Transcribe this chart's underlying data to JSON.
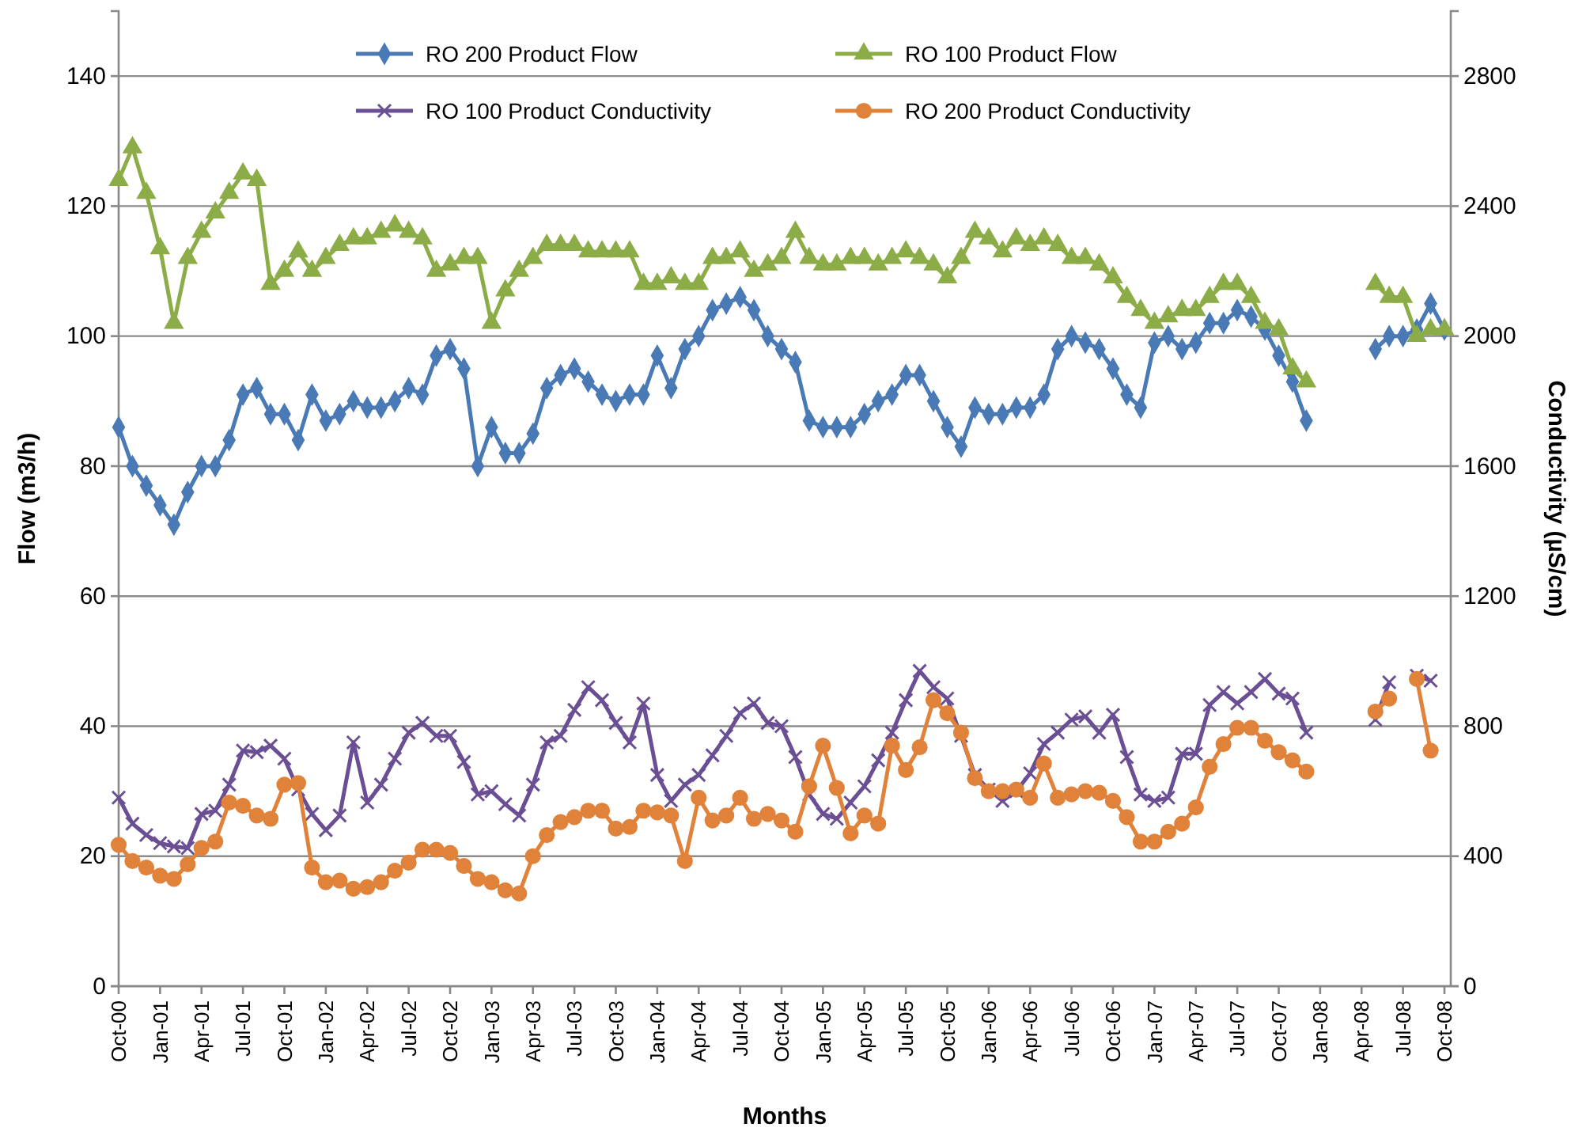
{
  "chart_data": {
    "type": "line",
    "xlabel": "Months",
    "ylabel": "Flow (m3/h)",
    "y2label": "Conductivity (µS/cm)",
    "categories": [
      "Oct-00",
      null,
      null,
      "Jan-01",
      null,
      null,
      "Apr-01",
      null,
      null,
      "Jul-01",
      null,
      null,
      "Oct-01",
      null,
      null,
      "Jan-02",
      null,
      null,
      "Apr-02",
      null,
      null,
      "Jul-02",
      null,
      null,
      "Oct-02",
      null,
      null,
      "Jan-03",
      null,
      null,
      "Apr-03",
      null,
      null,
      "Jul-03",
      null,
      null,
      "Oct-03",
      null,
      null,
      "Jan-04",
      null,
      null,
      "Apr-04",
      null,
      null,
      "Jul-04",
      null,
      null,
      "Oct-04",
      null,
      null,
      "Jan-05",
      null,
      null,
      "Apr-05",
      null,
      null,
      "Jul-05",
      null,
      null,
      "Oct-05",
      null,
      null,
      "Jan-06",
      null,
      null,
      "Apr-06",
      null,
      null,
      "Jul-06",
      null,
      null,
      "Oct-06",
      null,
      null,
      "Jan-07",
      null,
      null,
      "Apr-07",
      null,
      null,
      "Jul-07",
      null,
      null,
      "Oct-07",
      null,
      null,
      "Jan-08",
      null,
      null,
      "Apr-08",
      null,
      null,
      "Jul-08",
      null,
      null,
      "Oct-08"
    ],
    "ylim": [
      0,
      150
    ],
    "yticks": [
      0,
      20,
      40,
      60,
      80,
      100,
      120,
      140
    ],
    "y2lim": [
      0,
      3000
    ],
    "y2ticks": [
      0,
      400,
      800,
      1200,
      1600,
      2000,
      2400,
      2800
    ],
    "grid": "y",
    "legend": "top",
    "series": [
      {
        "name": "RO 200 Product Flow",
        "color": "#4a7ab5",
        "marker": "diamond",
        "values": [
          86,
          80,
          77,
          74,
          71,
          76,
          80,
          80,
          84,
          91,
          92,
          88,
          88,
          84,
          91,
          87,
          88,
          90,
          89,
          89,
          90,
          92,
          91,
          97,
          98,
          95,
          80,
          86,
          82,
          82,
          85,
          92,
          94,
          95,
          93,
          91,
          90,
          91,
          91,
          97,
          92,
          98,
          100,
          104,
          105,
          106,
          104,
          100,
          98,
          96,
          87,
          86,
          86,
          86,
          88,
          90,
          91,
          94,
          94,
          90,
          86,
          83,
          89,
          88,
          88,
          89,
          89,
          91,
          98,
          100,
          99,
          98,
          95,
          91,
          89,
          99,
          100,
          98,
          99,
          102,
          102,
          104,
          103,
          101,
          97,
          93,
          87,
          null,
          null,
          null,
          null,
          98,
          100,
          100,
          101,
          105,
          101
        ]
      },
      {
        "name": "RO 100 Product Flow",
        "color": "#8cac48",
        "marker": "triangle",
        "values": [
          124,
          129,
          122,
          113.5,
          102,
          112,
          116,
          119,
          122,
          125,
          124,
          108,
          110,
          113,
          110,
          112,
          114,
          115,
          115,
          116,
          117,
          116,
          115,
          110,
          111,
          112,
          112,
          102,
          107,
          110,
          112,
          114,
          114,
          114,
          113,
          113,
          113,
          113,
          108,
          108,
          109,
          108,
          108,
          112,
          112,
          113,
          110,
          111,
          112,
          116,
          112,
          111,
          111,
          112,
          112,
          111,
          112,
          113,
          112,
          111,
          109,
          112,
          116,
          115,
          113,
          115,
          114,
          115,
          114,
          112,
          112,
          111,
          109,
          106,
          104,
          102,
          103,
          104,
          104,
          106,
          108,
          108,
          106,
          102,
          101,
          95,
          93,
          null,
          null,
          null,
          null,
          108,
          106,
          106,
          100,
          101,
          101
        ]
      },
      {
        "name": "RO 100 Product Conductivity",
        "color": "#6a4f94",
        "marker": "cross",
        "axis": "y2",
        "values": [
          580,
          500,
          465,
          440,
          430,
          425,
          530,
          540,
          620,
          725,
          720,
          740,
          700,
          605,
          530,
          480,
          525,
          750,
          565,
          620,
          700,
          780,
          810,
          770,
          770,
          690,
          590,
          600,
          560,
          525,
          620,
          750,
          770,
          850,
          920,
          880,
          810,
          750,
          870,
          650,
          570,
          620,
          650,
          710,
          770,
          840,
          870,
          810,
          800,
          705,
          590,
          530,
          515,
          565,
          615,
          695,
          780,
          880,
          970,
          920,
          885,
          770,
          650,
          605,
          570,
          600,
          655,
          745,
          780,
          820,
          830,
          780,
          835,
          705,
          590,
          570,
          580,
          715,
          715,
          865,
          905,
          870,
          905,
          945,
          900,
          885,
          780,
          null,
          null,
          null,
          null,
          820,
          935,
          null,
          955,
          940,
          null
        ]
      },
      {
        "name": "RO 200 Product Conductivity",
        "color": "#e0823a",
        "marker": "circle",
        "axis": "y2",
        "values": [
          435,
          385,
          365,
          340,
          330,
          375,
          425,
          445,
          565,
          555,
          525,
          515,
          620,
          625,
          365,
          320,
          325,
          300,
          305,
          320,
          355,
          380,
          420,
          420,
          410,
          370,
          330,
          320,
          295,
          285,
          400,
          465,
          505,
          520,
          540,
          540,
          485,
          490,
          540,
          535,
          525,
          385,
          580,
          510,
          525,
          580,
          515,
          530,
          510,
          475,
          615,
          740,
          610,
          470,
          525,
          500,
          740,
          665,
          735,
          880,
          840,
          780,
          640,
          600,
          600,
          605,
          580,
          685,
          580,
          590,
          600,
          595,
          570,
          520,
          445,
          445,
          475,
          500,
          550,
          675,
          745,
          795,
          795,
          755,
          720,
          695,
          660,
          null,
          null,
          null,
          null,
          845,
          885,
          null,
          945,
          725,
          null
        ]
      }
    ]
  }
}
